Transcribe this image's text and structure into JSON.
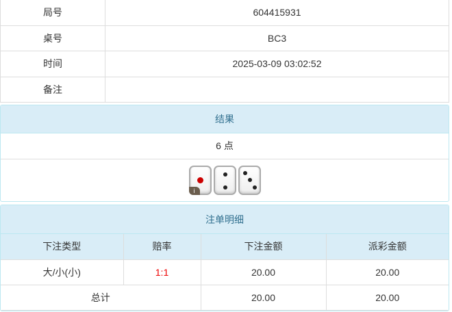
{
  "info": [
    {
      "label": "局号",
      "value": "604415931"
    },
    {
      "label": "桌号",
      "value": "BC3"
    },
    {
      "label": "时间",
      "value": "2025-03-09 03:02:52"
    },
    {
      "label": "备注",
      "value": ""
    }
  ],
  "result": {
    "title": "结果",
    "points": "6 点",
    "dice": [
      1,
      2,
      3
    ],
    "badge": "i"
  },
  "bets": {
    "title": "注单明细",
    "headers": [
      "下注类型",
      "赔率",
      "下注金额",
      "派彩金额"
    ],
    "rows": [
      {
        "type": "大/小(小)",
        "odds": "1:1",
        "amount": "20.00",
        "payout": "20.00"
      }
    ],
    "total": {
      "label": "总计",
      "amount": "20.00",
      "payout": "20.00"
    }
  }
}
